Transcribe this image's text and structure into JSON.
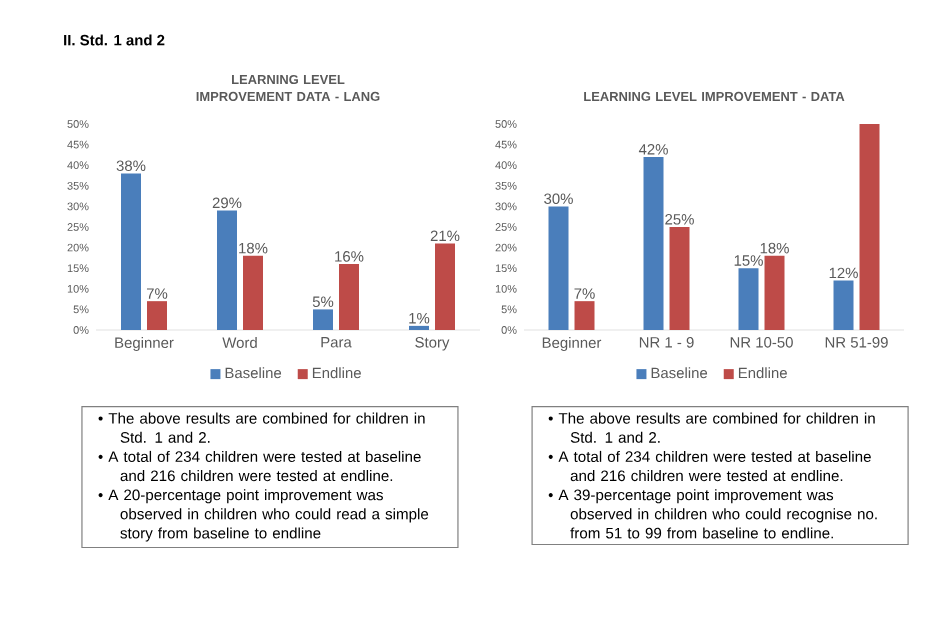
{
  "chart_data": [
    {
      "type": "bar",
      "title": "LEARNING LEVEL IMPROVEMENT DATA - LANG",
      "categories": [
        "Beginner",
        "Word",
        "Para",
        "Story"
      ],
      "series": [
        {
          "name": "Baseline",
          "color": "#4a7ebb",
          "values": [
            38,
            29,
            5,
            1
          ],
          "value_labels": [
            "38%",
            "29%",
            "5%",
            "1%"
          ]
        },
        {
          "name": "Endline",
          "color": "#be4b48",
          "values": [
            7,
            18,
            16,
            21
          ],
          "value_labels": [
            "7%",
            "18%",
            "16%",
            "21%"
          ]
        }
      ],
      "ylim": [
        0,
        50
      ],
      "yticks": [
        {
          "value": 0,
          "label": "0%"
        },
        {
          "value": 5,
          "label": "5%"
        },
        {
          "value": 10,
          "label": "10%"
        },
        {
          "value": 15,
          "label": "15%"
        },
        {
          "value": 20,
          "label": "20%"
        },
        {
          "value": 25,
          "label": "25%"
        },
        {
          "value": 30,
          "label": "30%"
        },
        {
          "value": 35,
          "label": "35%"
        },
        {
          "value": 40,
          "label": "40%"
        },
        {
          "value": 45,
          "label": "45%"
        },
        {
          "value": 50,
          "label": "50%"
        }
      ],
      "legend": "bottom",
      "annotations": [
        "II.    Std. 1 and 2",
        "• The above results are combined for children in Std. 1 and 2.",
        "• A total of 234 children were tested at baseline and 216 children were tested at endline.",
        "• A 20-percentage point improvement was observed in children who could read a simple story from baseline to endline"
      ]
    },
    {
      "type": "bar",
      "title": "LEARNING LEVEL IMPROVEMENT - DATA",
      "categories": [
        "Beginner",
        "NR 1 - 9",
        "NR 10-50",
        "NR 51-99"
      ],
      "series": [
        {
          "name": "Baseline",
          "color": "#4a7ebb",
          "values": [
            30,
            42,
            15,
            12
          ],
          "value_labels": [
            "30%",
            "42%",
            "15%",
            "12%"
          ]
        },
        {
          "name": "Endline",
          "color": "#be4b48",
          "values": [
            7,
            25,
            18,
            50
          ],
          "value_labels": [
            "7%",
            "25%",
            "18%",
            null
          ]
        }
      ],
      "ylim": [
        0,
        50
      ],
      "yticks": [
        {
          "value": 0,
          "label": "0%"
        },
        {
          "value": 5,
          "label": "5%"
        },
        {
          "value": 10,
          "label": "10%"
        },
        {
          "value": 15,
          "label": "15%"
        },
        {
          "value": 20,
          "label": "20%"
        },
        {
          "value": 25,
          "label": "25%"
        },
        {
          "value": 30,
          "label": "30%"
        },
        {
          "value": 35,
          "label": "35%"
        },
        {
          "value": 40,
          "label": "40%"
        },
        {
          "value": 45,
          "label": "45%"
        },
        {
          "value": 50,
          "label": "50%"
        }
      ],
      "legend": "bottom",
      "annotations": [
        "• The above results are combined for children in Std. 1 and 2.",
        "• A total of 234 children were tested at baseline and 216 children were tested at endline.",
        "• A 39-percentage point improvement was observed in children who could recognise no. from 51 to 99 from baseline to endline."
      ]
    }
  ]
}
